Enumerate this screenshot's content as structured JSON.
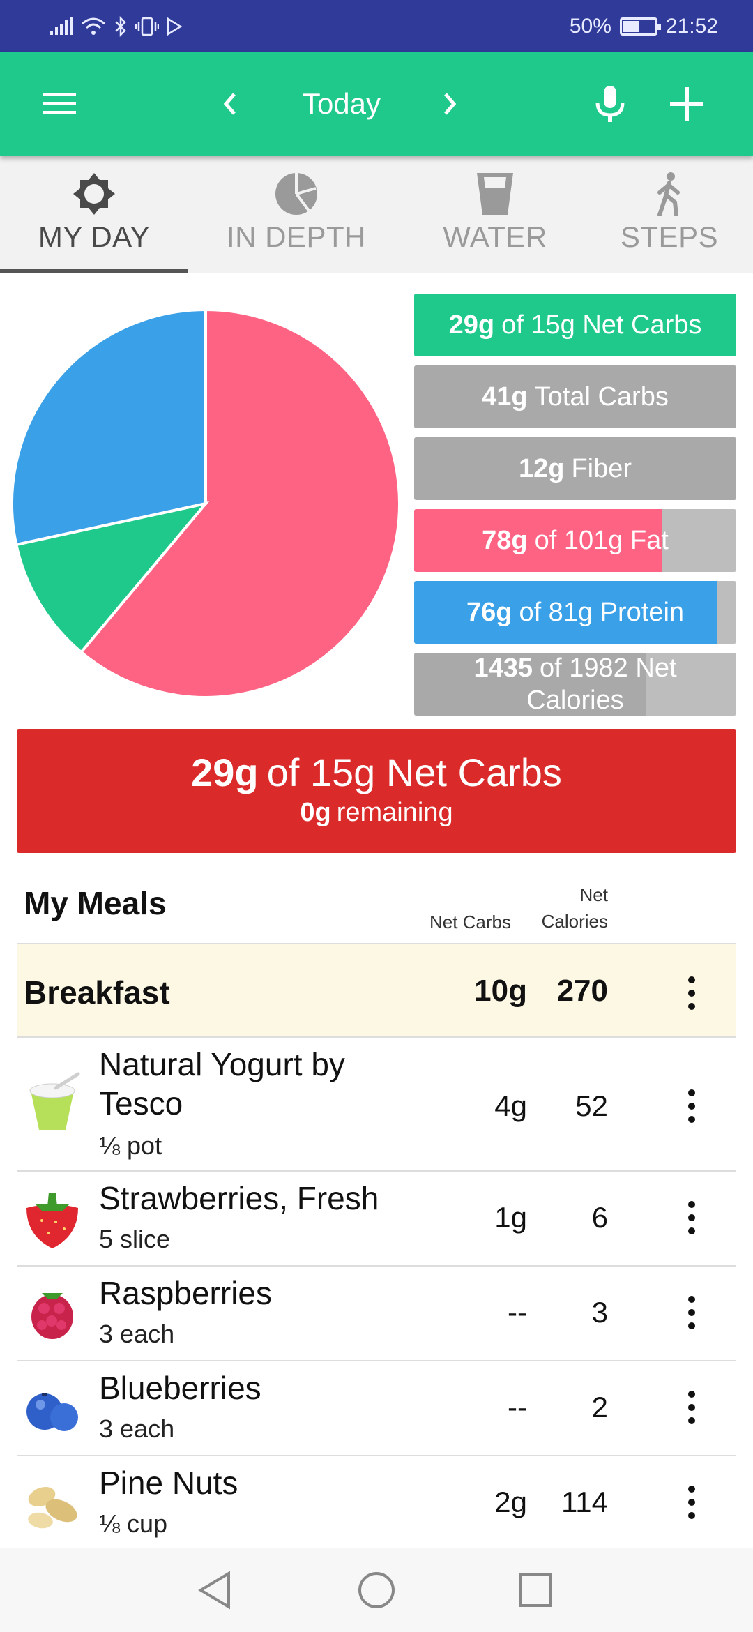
{
  "status_bar": {
    "battery": "50%",
    "battery_level": 0.5,
    "time": "21:52"
  },
  "app_bar": {
    "title": "Today",
    "icons": [
      "menu-icon",
      "chevron-left-icon",
      "chevron-right-icon",
      "mic-icon",
      "plus-icon"
    ]
  },
  "tabs": [
    {
      "label": "MY DAY",
      "icon": "gear-icon",
      "active": true
    },
    {
      "label": "IN DEPTH",
      "icon": "pie-icon",
      "active": false
    },
    {
      "label": "WATER",
      "icon": "water-glass-icon",
      "active": false
    },
    {
      "label": "STEPS",
      "icon": "walking-icon",
      "active": false
    }
  ],
  "pie": {
    "slices": [
      {
        "label": "Fat",
        "fraction": 0.611,
        "color": "#ff6384"
      },
      {
        "label": "Carbs",
        "fraction": 0.105,
        "color": "#1fc98b"
      },
      {
        "label": "Protein",
        "fraction": 0.284,
        "color": "#3aa0e8"
      }
    ]
  },
  "macros": [
    {
      "bold": "29g",
      "text": "of 15g Net Carbs",
      "color": "#1fc98b",
      "fill": 1.0
    },
    {
      "bold": "41g",
      "text": "Total Carbs",
      "color": "#a9a9a9",
      "fill": 1.0
    },
    {
      "bold": "12g",
      "text": "Fiber",
      "color": "#a9a9a9",
      "fill": 1.0
    },
    {
      "bold": "78g",
      "text": "of 101g Fat",
      "color": "#ff6384",
      "fill": 0.77
    },
    {
      "bold": "76g",
      "text": "of 81g Protein",
      "color": "#3aa0e8",
      "fill": 0.94
    },
    {
      "bold": "1435",
      "text": "of 1982 Net Calories",
      "color": "#a9a9a9",
      "fill": 0.72
    }
  ],
  "summary": {
    "bold": "29g",
    "text": "of 15g Net Carbs",
    "remaining_bold": "0g",
    "remaining_text": "remaining",
    "color": "#da2a2a"
  },
  "meals": {
    "title": "My Meals",
    "col_net_carbs": "Net Carbs",
    "col_net_calories_line1": "Net",
    "col_net_calories_line2": "Calories",
    "breakfast": {
      "name": "Breakfast",
      "net_carbs": "10g",
      "calories": "270"
    },
    "foods": [
      {
        "name_line1": "Natural Yogurt by",
        "name_line2": "Tesco",
        "serving": "⅛ pot",
        "net_carbs": "4g",
        "calories": "52",
        "icon": "yogurt-icon"
      },
      {
        "name_line1": "Strawberries, Fresh",
        "serving": "5 slice",
        "net_carbs": "1g",
        "calories": "6",
        "icon": "strawberry-icon"
      },
      {
        "name_line1": "Raspberries",
        "serving": "3 each",
        "net_carbs": "--",
        "calories": "3",
        "icon": "raspberry-icon"
      },
      {
        "name_line1": "Blueberries",
        "serving": "3 each",
        "net_carbs": "--",
        "calories": "2",
        "icon": "blueberry-icon"
      },
      {
        "name_line1": "Pine Nuts",
        "serving": "⅛ cup",
        "net_carbs": "2g",
        "calories": "114",
        "icon": "nuts-icon"
      }
    ]
  },
  "nav_bar": {
    "icons": [
      "back-icon",
      "home-icon",
      "recents-icon"
    ]
  }
}
